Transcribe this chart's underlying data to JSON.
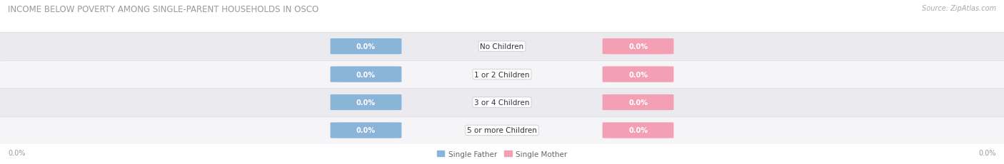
{
  "title": "INCOME BELOW POVERTY AMONG SINGLE-PARENT HOUSEHOLDS IN OSCO",
  "source": "Source: ZipAtlas.com",
  "categories": [
    "No Children",
    "1 or 2 Children",
    "3 or 4 Children",
    "5 or more Children"
  ],
  "single_father_values": [
    0.0,
    0.0,
    0.0,
    0.0
  ],
  "single_mother_values": [
    0.0,
    0.0,
    0.0,
    0.0
  ],
  "father_color": "#8ab4d8",
  "mother_color": "#f4a0b4",
  "row_even_color": "#f5f5f7",
  "row_odd_color": "#ebebef",
  "row_line_color": "#d8d8de",
  "label_box_color": "#ffffff",
  "label_box_edge": "#cccccc",
  "title_color": "#999999",
  "source_color": "#aaaaaa",
  "axis_tick_color": "#999999",
  "legend_label_color": "#666666",
  "title_fontsize": 8.5,
  "source_fontsize": 7,
  "cat_fontsize": 7.5,
  "chip_fontsize": 7,
  "axis_label_fontsize": 7,
  "legend_fontsize": 7.5,
  "axis_tick_left": "0.0%",
  "axis_tick_right": "0.0%",
  "legend_father": "Single Father",
  "legend_mother": "Single Mother",
  "figsize": [
    14.06,
    2.32
  ],
  "dpi": 100
}
